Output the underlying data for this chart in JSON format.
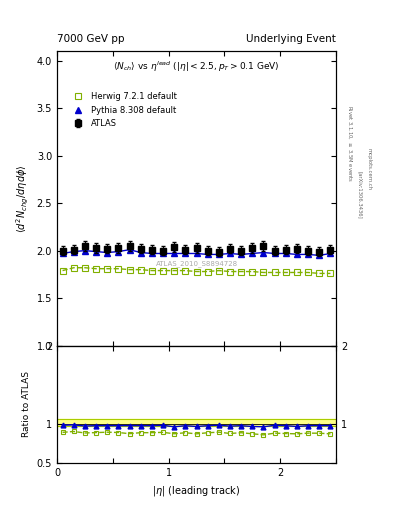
{
  "title_left": "7000 GeV pp",
  "title_right": "Underlying Event",
  "plot_title": "$\\langle N_{ch}\\rangle$ vs $\\eta^{lead}$ ($|\\eta| < 2.5, p_T > 0.1$ GeV)",
  "xlabel": "$|\\eta|$ (leading track)",
  "ylabel_main": "$\\langle d^2 N_{chg}/d\\eta d\\phi \\rangle$",
  "ylabel_ratio": "Ratio to ATLAS",
  "watermark": "ATLAS_2010_S8894728",
  "xlim": [
    0,
    2.5
  ],
  "ylim_main": [
    1.0,
    4.1
  ],
  "ylim_ratio": [
    0.5,
    2.0
  ],
  "atlas_x": [
    0.05,
    0.15,
    0.25,
    0.35,
    0.45,
    0.55,
    0.65,
    0.75,
    0.85,
    0.95,
    1.05,
    1.15,
    1.25,
    1.35,
    1.45,
    1.55,
    1.65,
    1.75,
    1.85,
    1.95,
    2.05,
    2.15,
    2.25,
    2.35,
    2.45
  ],
  "atlas_y": [
    2.0,
    2.01,
    2.05,
    2.03,
    2.02,
    2.03,
    2.05,
    2.02,
    2.01,
    2.0,
    2.04,
    2.01,
    2.03,
    2.0,
    1.99,
    2.02,
    2.0,
    2.03,
    2.05,
    2.0,
    2.01,
    2.02,
    2.0,
    1.99,
    2.01
  ],
  "atlas_yerr": [
    0.05,
    0.05,
    0.05,
    0.05,
    0.05,
    0.05,
    0.05,
    0.05,
    0.05,
    0.05,
    0.05,
    0.05,
    0.05,
    0.05,
    0.05,
    0.05,
    0.05,
    0.05,
    0.05,
    0.05,
    0.05,
    0.05,
    0.05,
    0.05,
    0.05
  ],
  "herwig_x": [
    0.05,
    0.15,
    0.25,
    0.35,
    0.45,
    0.55,
    0.65,
    0.75,
    0.85,
    0.95,
    1.05,
    1.15,
    1.25,
    1.35,
    1.45,
    1.55,
    1.65,
    1.75,
    1.85,
    1.95,
    2.05,
    2.15,
    2.25,
    2.35,
    2.45
  ],
  "herwig_y": [
    1.79,
    1.82,
    1.82,
    1.81,
    1.81,
    1.81,
    1.8,
    1.8,
    1.79,
    1.79,
    1.79,
    1.79,
    1.78,
    1.78,
    1.79,
    1.78,
    1.78,
    1.78,
    1.77,
    1.77,
    1.77,
    1.77,
    1.77,
    1.76,
    1.76
  ],
  "pythia_x": [
    0.05,
    0.15,
    0.25,
    0.35,
    0.45,
    0.55,
    0.65,
    0.75,
    0.85,
    0.95,
    1.05,
    1.15,
    1.25,
    1.35,
    1.45,
    1.55,
    1.65,
    1.75,
    1.85,
    1.95,
    2.05,
    2.15,
    2.25,
    2.35,
    2.45
  ],
  "pythia_y": [
    1.97,
    1.99,
    2.0,
    1.99,
    1.98,
    1.99,
    2.01,
    1.98,
    1.97,
    1.97,
    1.97,
    1.97,
    1.97,
    1.96,
    1.96,
    1.97,
    1.96,
    1.97,
    1.98,
    1.97,
    1.97,
    1.96,
    1.96,
    1.95,
    1.97
  ],
  "herwig_ratio": [
    0.895,
    0.906,
    0.887,
    0.892,
    0.897,
    0.893,
    0.878,
    0.891,
    0.891,
    0.895,
    0.877,
    0.89,
    0.876,
    0.89,
    0.897,
    0.881,
    0.89,
    0.877,
    0.863,
    0.885,
    0.88,
    0.876,
    0.885,
    0.884,
    0.876
  ],
  "pythia_ratio": [
    0.985,
    0.99,
    0.976,
    0.98,
    0.98,
    0.98,
    0.981,
    0.98,
    0.98,
    0.985,
    0.966,
    0.98,
    0.97,
    0.98,
    0.985,
    0.975,
    0.98,
    0.97,
    0.966,
    0.985,
    0.98,
    0.97,
    0.98,
    0.98,
    0.98
  ],
  "atlas_color": "#000000",
  "herwig_color": "#80b000",
  "pythia_color": "#0000cc",
  "atlas_band_lo": 0.97,
  "atlas_band_hi": 1.07,
  "atlas_band_color": "#ffff88",
  "atlas_band_edge_color": "#aacc00",
  "bg_color": "#ffffff"
}
